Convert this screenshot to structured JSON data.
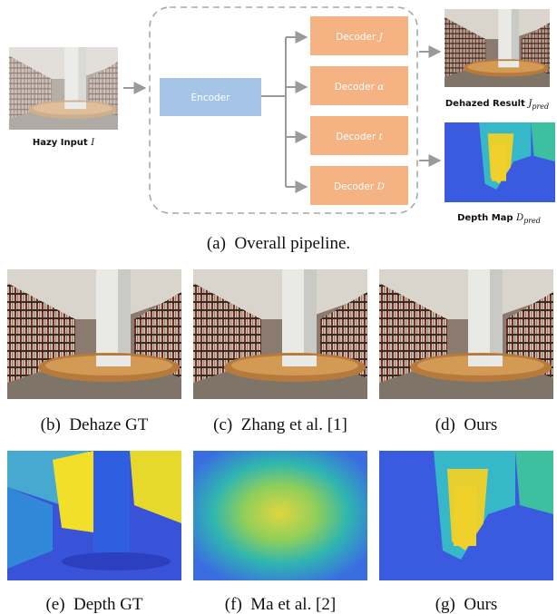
{
  "pipeline": {
    "input": {
      "text": "Hazy Input",
      "symbol": "I"
    },
    "encoder": "Encoder",
    "decoders": [
      {
        "text": "Decoder",
        "symbol": "J"
      },
      {
        "text": "Decoder",
        "symbol": "α"
      },
      {
        "text": "Decoder",
        "symbol": "t"
      },
      {
        "text": "Decoder",
        "symbol": "D"
      }
    ],
    "outputs": [
      {
        "text": "Dehazed Result",
        "symbol": "J",
        "subscript": "pred"
      },
      {
        "text": "Depth Map",
        "symbol": "D",
        "subscript": "pred"
      }
    ]
  },
  "captions": [
    {
      "label": "(a)",
      "text": "Overall pipeline."
    },
    {
      "label": "(b)",
      "text": "Dehaze GT"
    },
    {
      "label": "(c)",
      "text": "Zhang et al. [1]"
    },
    {
      "label": "(d)",
      "text": "Ours"
    },
    {
      "label": "(e)",
      "text": "Depth GT"
    },
    {
      "label": "(f)",
      "text": "Ma et al. [2]"
    },
    {
      "label": "(g)",
      "text": "Ours"
    }
  ]
}
